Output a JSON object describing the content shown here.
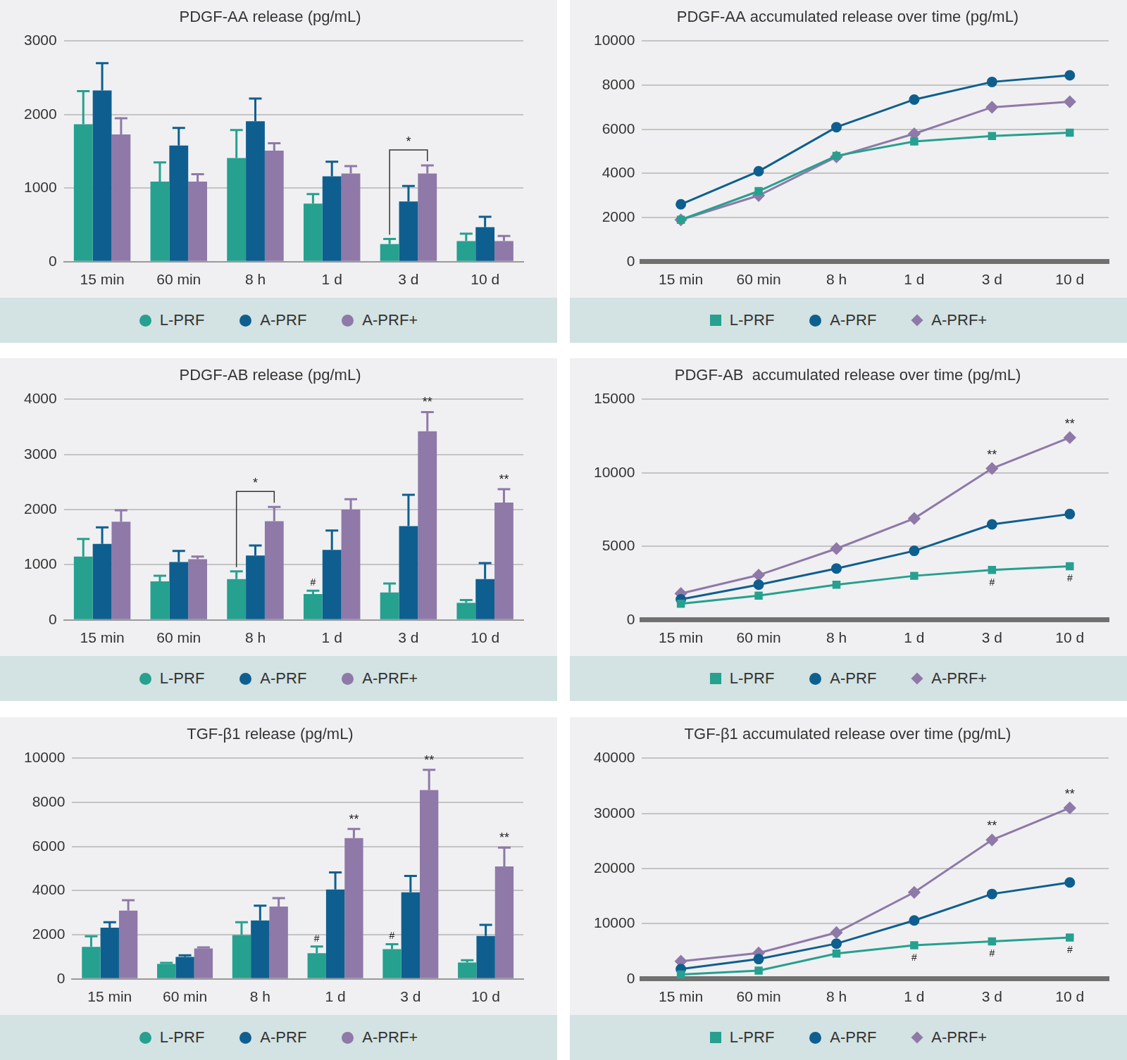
{
  "chart_data": [
    {
      "type": "bar",
      "title": "PDGF-AA release (pg/mL)",
      "grid": true,
      "legend": "bottom",
      "categories": [
        "15 min",
        "60 min",
        "8 h",
        "1 d",
        "3 d",
        "10 d"
      ],
      "ylim": [
        0,
        3000
      ],
      "yticks": [
        0,
        1000,
        2000,
        3000
      ],
      "series": [
        {
          "name": "L-PRF",
          "color": "#26a08f",
          "values": [
            1870,
            1090,
            1410,
            790,
            240,
            280
          ],
          "errors": [
            450,
            260,
            380,
            130,
            70,
            100
          ]
        },
        {
          "name": "A-PRF",
          "color": "#0e5f8f",
          "values": [
            2330,
            1580,
            1910,
            1160,
            820,
            470
          ],
          "errors": [
            370,
            240,
            310,
            200,
            210,
            140
          ]
        },
        {
          "name": "A-PRF+",
          "color": "#8e79a8",
          "values": [
            1730,
            1090,
            1510,
            1200,
            1200,
            280
          ],
          "errors": [
            220,
            100,
            100,
            100,
            110,
            70
          ]
        }
      ],
      "annotations": [
        {
          "text": "*",
          "category": "3 d",
          "from": "L-PRF",
          "to": "A-PRF+"
        }
      ]
    },
    {
      "type": "line",
      "title": "PDGF-AA accumulated release over time (pg/mL)",
      "grid": true,
      "legend": "bottom",
      "categories": [
        "15 min",
        "60 min",
        "8 h",
        "1 d",
        "3 d",
        "10 d"
      ],
      "ylim": [
        0,
        10000
      ],
      "yticks": [
        0,
        2000,
        4000,
        6000,
        8000,
        10000
      ],
      "series": [
        {
          "name": "L-PRF",
          "color": "#26a08f",
          "marker": "square",
          "values": [
            1900,
            3200,
            4800,
            5450,
            5700,
            5850
          ]
        },
        {
          "name": "A-PRF",
          "color": "#0e5f8f",
          "marker": "circle",
          "values": [
            2600,
            4100,
            6100,
            7350,
            8150,
            8450
          ]
        },
        {
          "name": "A-PRF+",
          "color": "#8e79a8",
          "marker": "diamond",
          "values": [
            1900,
            3000,
            4750,
            5800,
            7000,
            7250
          ]
        }
      ]
    },
    {
      "type": "bar",
      "title": "PDGF-AB release (pg/mL)",
      "grid": true,
      "legend": "bottom",
      "categories": [
        "15 min",
        "60 min",
        "8 h",
        "1 d",
        "3 d",
        "10 d"
      ],
      "ylim": [
        0,
        4000
      ],
      "yticks": [
        0,
        1000,
        2000,
        3000,
        4000
      ],
      "series": [
        {
          "name": "L-PRF",
          "color": "#26a08f",
          "values": [
            1150,
            700,
            740,
            470,
            500,
            310
          ],
          "errors": [
            320,
            100,
            140,
            60,
            160,
            50
          ]
        },
        {
          "name": "A-PRF",
          "color": "#0e5f8f",
          "values": [
            1380,
            1050,
            1170,
            1270,
            1700,
            740
          ],
          "errors": [
            300,
            200,
            180,
            350,
            570,
            290
          ]
        },
        {
          "name": "A-PRF+",
          "color": "#8e79a8",
          "values": [
            1780,
            1100,
            1790,
            2000,
            3420,
            2130
          ],
          "errors": [
            210,
            50,
            260,
            190,
            350,
            240
          ]
        }
      ],
      "annotations": [
        {
          "text": "*",
          "category": "8 h",
          "from": "L-PRF",
          "to": "A-PRF+"
        },
        {
          "text": "#",
          "category": "1 d",
          "series": "L-PRF"
        },
        {
          "text": "**",
          "category": "3 d",
          "series": "A-PRF+"
        },
        {
          "text": "**",
          "category": "10 d",
          "series": "A-PRF+"
        }
      ]
    },
    {
      "type": "line",
      "title": "PDGF-AB  accumulated release over time (pg/mL)",
      "grid": true,
      "legend": "bottom",
      "categories": [
        "15 min",
        "60 min",
        "8 h",
        "1 d",
        "3 d",
        "10 d"
      ],
      "ylim": [
        0,
        15000
      ],
      "yticks": [
        0,
        5000,
        10000,
        15000
      ],
      "series": [
        {
          "name": "L-PRF",
          "color": "#26a08f",
          "marker": "square",
          "values": [
            1100,
            1650,
            2400,
            3000,
            3400,
            3650
          ]
        },
        {
          "name": "A-PRF",
          "color": "#0e5f8f",
          "marker": "circle",
          "values": [
            1400,
            2400,
            3500,
            4700,
            6500,
            7200
          ]
        },
        {
          "name": "A-PRF+",
          "color": "#8e79a8",
          "marker": "diamond",
          "values": [
            1800,
            3050,
            4850,
            6900,
            10300,
            12400
          ]
        }
      ],
      "annotations": [
        {
          "text": "**",
          "category": "3 d",
          "series": "A-PRF+",
          "position": "above"
        },
        {
          "text": "**",
          "category": "10 d",
          "series": "A-PRF+",
          "position": "above"
        },
        {
          "text": "#",
          "category": "3 d",
          "series": "L-PRF",
          "position": "below"
        },
        {
          "text": "#",
          "category": "10 d",
          "series": "L-PRF",
          "position": "below"
        }
      ]
    },
    {
      "type": "bar",
      "title": "TGF-β1 release (pg/mL)",
      "grid": true,
      "legend": "bottom",
      "categories": [
        "15 min",
        "60 min",
        "8 h",
        "1 d",
        "3 d",
        "10 d"
      ],
      "ylim": [
        0,
        10000
      ],
      "yticks": [
        0,
        2000,
        4000,
        6000,
        8000,
        10000
      ],
      "series": [
        {
          "name": "L-PRF",
          "color": "#26a08f",
          "values": [
            1450,
            680,
            1990,
            1170,
            1350,
            740
          ],
          "errors": [
            480,
            50,
            580,
            300,
            220,
            110
          ]
        },
        {
          "name": "A-PRF",
          "color": "#0e5f8f",
          "values": [
            2320,
            1000,
            2650,
            4050,
            3930,
            1950
          ],
          "errors": [
            250,
            70,
            670,
            780,
            740,
            500
          ]
        },
        {
          "name": "A-PRF+",
          "color": "#8e79a8",
          "values": [
            3100,
            1380,
            3280,
            6380,
            8560,
            5100
          ],
          "errors": [
            470,
            50,
            380,
            420,
            920,
            850
          ]
        }
      ],
      "annotations": [
        {
          "text": "#",
          "category": "1 d",
          "series": "L-PRF"
        },
        {
          "text": "#",
          "category": "3 d",
          "series": "L-PRF"
        },
        {
          "text": "**",
          "category": "1 d",
          "series": "A-PRF+"
        },
        {
          "text": "**",
          "category": "3 d",
          "series": "A-PRF+"
        },
        {
          "text": "**",
          "category": "10 d",
          "series": "A-PRF+"
        }
      ]
    },
    {
      "type": "line",
      "title": "TGF-β1 accumulated release over time (pg/mL)",
      "grid": true,
      "legend": "bottom",
      "categories": [
        "15 min",
        "60 min",
        "8 h",
        "1 d",
        "3 d",
        "10 d"
      ],
      "ylim": [
        0,
        40000
      ],
      "yticks": [
        0,
        10000,
        20000,
        30000,
        40000
      ],
      "series": [
        {
          "name": "L-PRF",
          "color": "#26a08f",
          "marker": "square",
          "values": [
            800,
            1500,
            4600,
            6100,
            6800,
            7500
          ]
        },
        {
          "name": "A-PRF",
          "color": "#0e5f8f",
          "marker": "circle",
          "values": [
            1800,
            3600,
            6400,
            10600,
            15400,
            17500
          ]
        },
        {
          "name": "A-PRF+",
          "color": "#8e79a8",
          "marker": "diamond",
          "values": [
            3200,
            4700,
            8400,
            15700,
            25200,
            31000
          ]
        }
      ],
      "annotations": [
        {
          "text": "**",
          "category": "3 d",
          "series": "A-PRF+",
          "position": "above"
        },
        {
          "text": "**",
          "category": "10 d",
          "series": "A-PRF+",
          "position": "above"
        },
        {
          "text": "#",
          "category": "1 d",
          "series": "L-PRF",
          "position": "below"
        },
        {
          "text": "#",
          "category": "3 d",
          "series": "L-PRF",
          "position": "below"
        },
        {
          "text": "#",
          "category": "10 d",
          "series": "L-PRF",
          "position": "below"
        }
      ]
    }
  ]
}
